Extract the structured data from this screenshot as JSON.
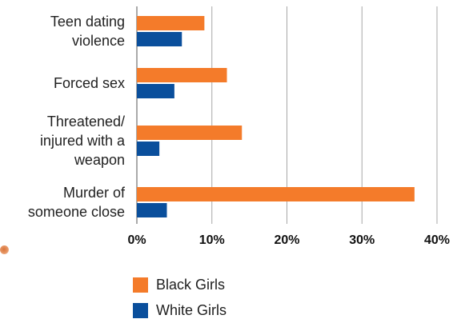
{
  "chart_data": {
    "type": "bar",
    "orientation": "horizontal",
    "categories": [
      [
        "Teen dating",
        "violence"
      ],
      [
        "Forced sex"
      ],
      [
        "Threatened/",
        "injured with a",
        "weapon"
      ],
      [
        "Murder of",
        "someone close"
      ]
    ],
    "series": [
      {
        "name": "Black Girls",
        "color": "#f47b2a",
        "values": [
          9,
          12,
          14,
          37
        ]
      },
      {
        "name": "White Girls",
        "color": "#0a4f9c",
        "values": [
          6,
          5,
          3,
          4
        ]
      }
    ],
    "xlim": [
      0,
      40
    ],
    "xticks": [
      0,
      10,
      20,
      30,
      40
    ],
    "xtick_labels": [
      "0%",
      "10%",
      "20%",
      "30%",
      "40%"
    ],
    "grid": true,
    "legend_position": "bottom"
  }
}
